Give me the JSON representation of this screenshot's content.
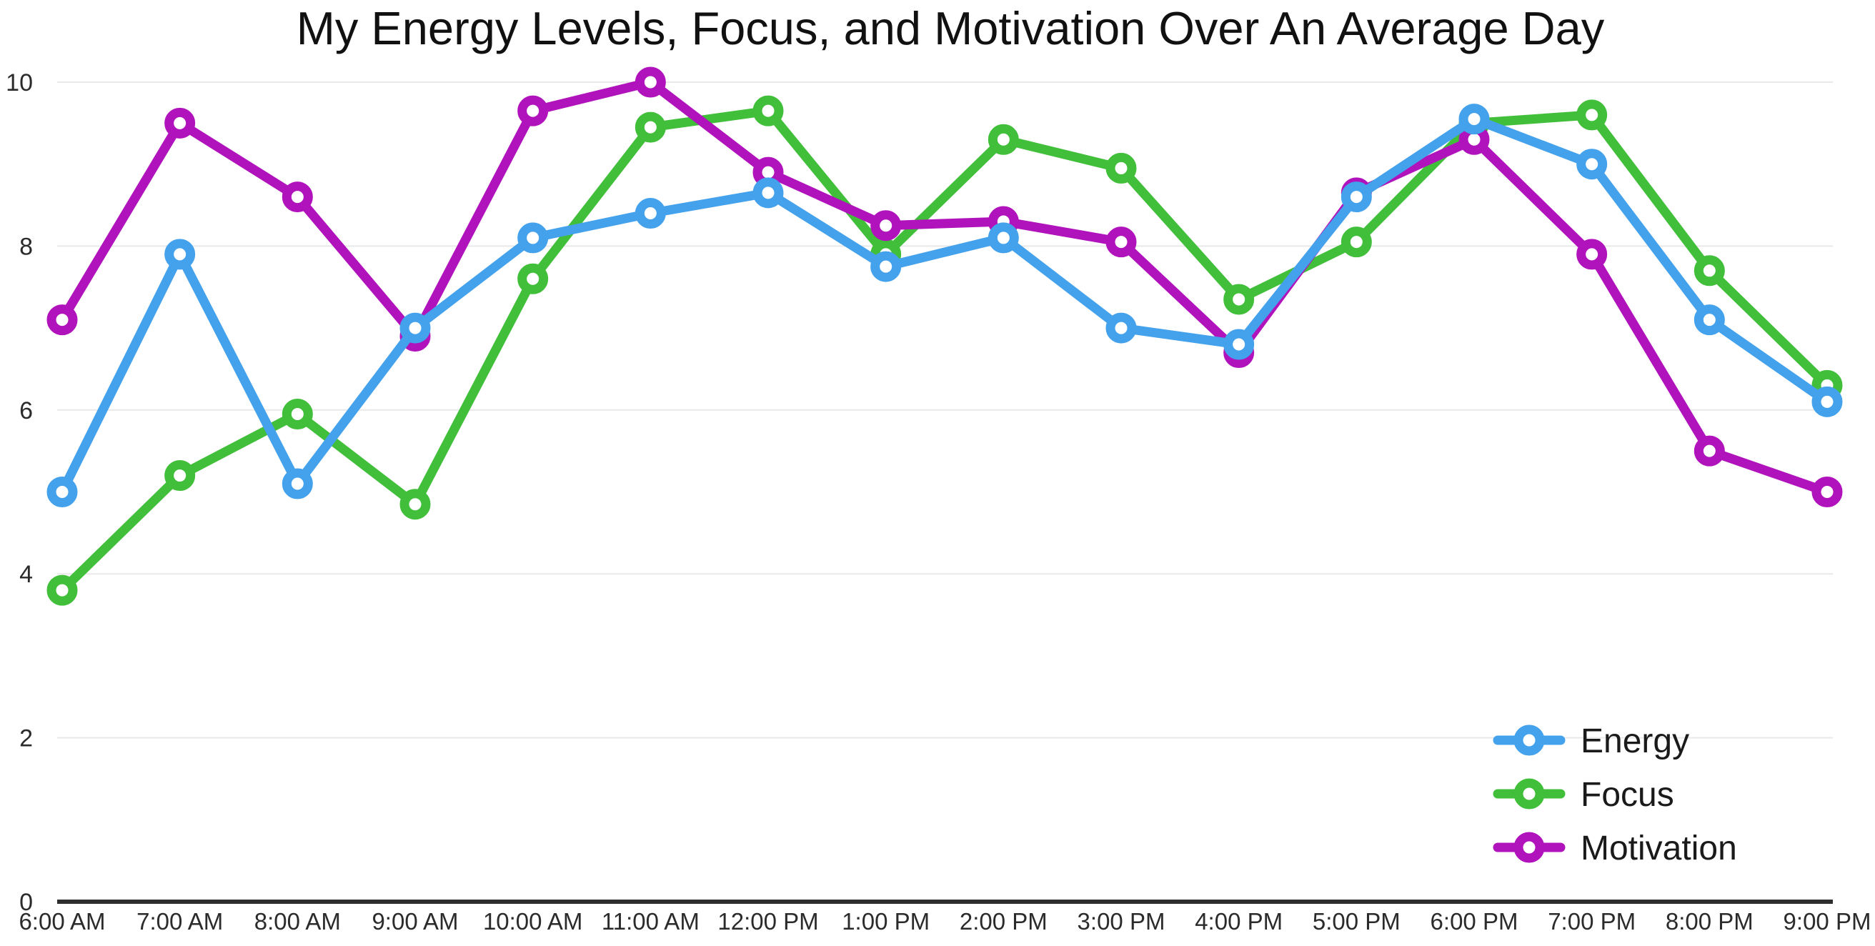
{
  "title": "My Energy Levels, Focus, and Motivation Over An Average Day",
  "colors": {
    "background": "#ffffff",
    "title_text": "#111111",
    "axis": "#2e2e2e",
    "gridline": "#e9e9e9",
    "tick_text": "#2b2b2b",
    "legend_text": "#1a1a1a",
    "energy": "#44A1EC",
    "focus": "#41BF3A",
    "motivation": "#B013BB"
  },
  "chart_data": {
    "type": "line",
    "title": "My Energy Levels, Focus, and Motivation Over An Average Day",
    "xlabel": "",
    "ylabel": "",
    "ylim": [
      0,
      10
    ],
    "grid": true,
    "legend_position": "bottom-right",
    "marker_style": "open-circle",
    "x_categories": [
      "6:00 AM",
      "7:00 AM",
      "8:00 AM",
      "9:00 AM",
      "10:00 AM",
      "11:00 AM",
      "12:00 PM",
      "1:00 PM",
      "2:00 PM",
      "3:00 PM",
      "4:00 PM",
      "5:00 PM",
      "6:00 PM",
      "7:00 PM",
      "8:00 PM",
      "9:00 PM"
    ],
    "y_ticks": [
      0,
      2,
      4,
      6,
      8,
      10
    ],
    "series": [
      {
        "name": "Energy",
        "color": "#44A1EC",
        "values": [
          5.0,
          7.9,
          5.1,
          7.0,
          8.1,
          8.4,
          8.65,
          7.75,
          8.1,
          7.0,
          6.8,
          8.6,
          9.55,
          9.0,
          7.1,
          6.1
        ]
      },
      {
        "name": "Focus",
        "color": "#41BF3A",
        "values": [
          3.8,
          5.2,
          5.95,
          4.85,
          7.6,
          9.45,
          9.65,
          7.9,
          9.3,
          8.95,
          7.35,
          8.05,
          9.5,
          9.6,
          7.7,
          6.3
        ]
      },
      {
        "name": "Motivation",
        "color": "#B013BB",
        "values": [
          7.1,
          9.5,
          8.6,
          6.9,
          9.65,
          10.0,
          8.9,
          8.25,
          8.3,
          8.05,
          6.7,
          8.65,
          9.3,
          7.9,
          5.5,
          5.0
        ]
      }
    ]
  }
}
